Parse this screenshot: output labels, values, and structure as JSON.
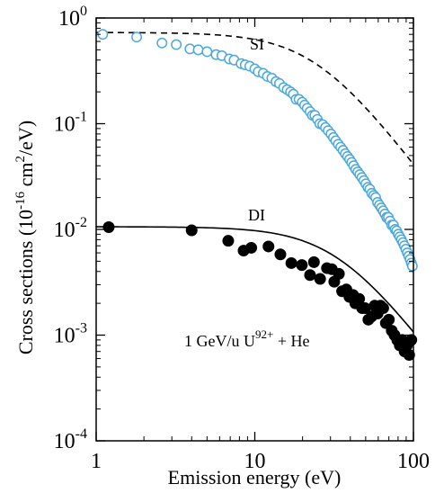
{
  "chart_data": {
    "type": "scatter",
    "xlabel": "Emission energy (eV)",
    "ylabel": "Cross sections  (10^-16 cm^2/eV)",
    "xscale": "log",
    "yscale": "log",
    "xlim": [
      1,
      100
    ],
    "ylim": [
      0.0001,
      1
    ],
    "x_ticks": [
      1,
      10,
      100
    ],
    "x_tick_labels": [
      "1",
      "10",
      "100"
    ],
    "y_ticks": [
      {
        "value": 0.0001,
        "base": "10",
        "exp": "-4"
      },
      {
        "value": 0.001,
        "base": "10",
        "exp": "-3"
      },
      {
        "value": 0.01,
        "base": "10",
        "exp": "-2"
      },
      {
        "value": 0.1,
        "base": "10",
        "exp": "-1"
      },
      {
        "value": 1,
        "base": "10",
        "exp": "0"
      }
    ],
    "grid": false,
    "annotations": [
      {
        "text": "SI",
        "x": 30,
        "y": 0.5
      },
      {
        "text": "DI",
        "x": 10,
        "y": 0.0125
      },
      {
        "text": "1 GeV/u U^92+ + He",
        "x": 1.5,
        "y": 0.0008
      }
    ],
    "series": [
      {
        "name": "SI",
        "marker": "open-circle",
        "color": "#4aa8dc",
        "x": [
          1.1,
          1.8,
          2.6,
          3.2,
          3.9,
          4.4,
          5.0,
          5.7,
          6.2,
          6.9,
          7.4,
          8.2,
          8.7,
          9.3,
          10.0,
          10.5,
          11.3,
          12.0,
          12.8,
          13.6,
          14.3,
          15.2,
          16.0,
          16.8,
          17.5,
          18.2,
          19.0,
          19.9,
          20.6,
          21.4,
          22.3,
          23.1,
          23.9,
          24.8,
          25.7,
          26.8,
          27.9,
          29.0,
          30.2,
          31.3,
          32.4,
          33.6,
          34.8,
          36.0,
          37.2,
          38.4,
          39.6,
          40.8,
          42.0,
          43.3,
          44.6,
          45.9,
          47.3,
          48.7,
          50.1,
          51.6,
          53.1,
          54.6,
          56.2,
          57.8,
          59.4,
          61.0,
          62.7,
          64.4,
          66.1,
          67.8,
          69.5,
          71.2,
          73.0,
          74.8,
          76.6,
          78.4,
          80.2,
          82.0,
          83.9,
          85.8,
          87.7,
          89.6,
          91.5,
          93.4,
          95.3,
          97.0,
          98.5
        ],
        "y": [
          0.7,
          0.66,
          0.58,
          0.56,
          0.51,
          0.5,
          0.48,
          0.45,
          0.44,
          0.41,
          0.4,
          0.37,
          0.36,
          0.35,
          0.33,
          0.31,
          0.3,
          0.28,
          0.27,
          0.25,
          0.24,
          0.22,
          0.21,
          0.2,
          0.19,
          0.17,
          0.17,
          0.16,
          0.15,
          0.14,
          0.13,
          0.12,
          0.12,
          0.11,
          0.1,
          0.098,
          0.092,
          0.086,
          0.08,
          0.074,
          0.069,
          0.064,
          0.06,
          0.056,
          0.052,
          0.049,
          0.046,
          0.043,
          0.04,
          0.037,
          0.035,
          0.033,
          0.031,
          0.029,
          0.027,
          0.025,
          0.024,
          0.022,
          0.021,
          0.02,
          0.018,
          0.017,
          0.016,
          0.015,
          0.014,
          0.013,
          0.013,
          0.012,
          0.011,
          0.011,
          0.01,
          0.0097,
          0.009,
          0.0085,
          0.008,
          0.0075,
          0.007,
          0.0065,
          0.006,
          0.0056,
          0.0052,
          0.0048,
          0.0045
        ]
      },
      {
        "name": "DI",
        "marker": "filled-circle",
        "color": "#000000",
        "x": [
          1.2,
          4.0,
          6.8,
          8.5,
          9.5,
          12.2,
          14.5,
          17.0,
          19.8,
          22.3,
          23.6,
          25.8,
          28.5,
          30.6,
          31.7,
          33.9,
          35.5,
          37.8,
          39.5,
          41.6,
          43.0,
          45.5,
          47.5,
          49.5,
          52.0,
          54.5,
          57.0,
          59.5,
          62.0,
          64.5,
          67.0,
          70.0,
          73.0,
          76.0,
          79.0,
          82.0,
          85.0,
          88.0,
          91.0,
          94.0,
          97.0
        ],
        "y": [
          0.0105,
          0.0098,
          0.0078,
          0.0063,
          0.0067,
          0.0069,
          0.0058,
          0.0048,
          0.0046,
          0.0037,
          0.0049,
          0.0034,
          0.0043,
          0.0042,
          0.0032,
          0.0038,
          0.0026,
          0.0027,
          0.0023,
          0.0024,
          0.002,
          0.0022,
          0.0018,
          0.0018,
          0.0014,
          0.0015,
          0.0019,
          0.0016,
          0.0019,
          0.0018,
          0.0013,
          0.0014,
          0.0011,
          0.001,
          0.0009,
          0.0008,
          0.0009,
          0.0007,
          0.0008,
          0.00065,
          0.0009
        ]
      }
    ],
    "fit_curves": [
      {
        "series": "SI",
        "style": "dashed",
        "color": "#000000",
        "peak": 0.73,
        "e0": 24.5,
        "power": 2.0
      },
      {
        "series": "DI",
        "style": "solid",
        "color": "#000000",
        "peak": 0.0106,
        "e0": 33.5,
        "power": 2.0
      }
    ]
  }
}
